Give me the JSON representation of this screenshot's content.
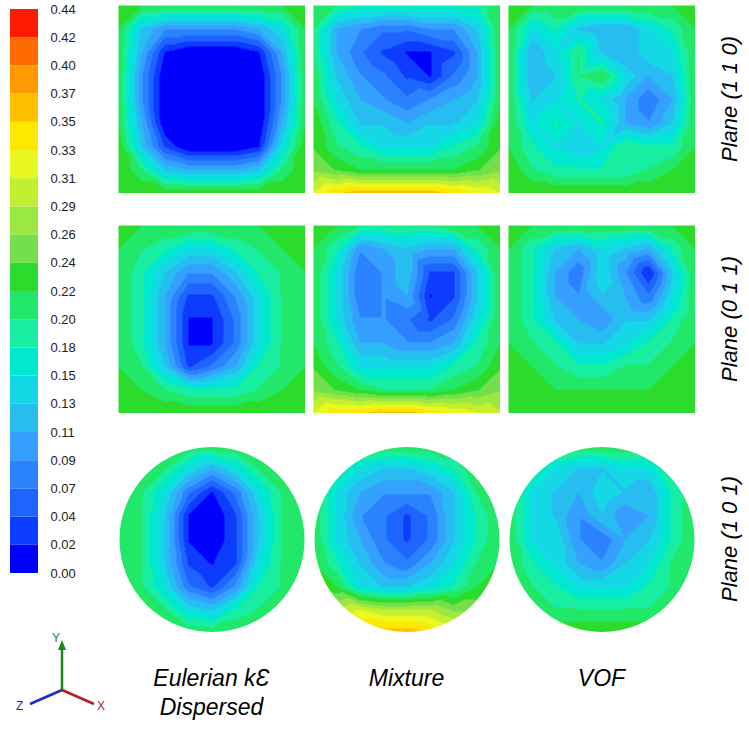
{
  "chart_data": {
    "type": "heatmap",
    "colorbar": {
      "range": [
        0,
        0.44
      ],
      "ticks": [
        {
          "value": 0,
          "label": "0.00"
        },
        {
          "value": 0.022,
          "label": "0.02"
        },
        {
          "value": 0.044,
          "label": "0.04"
        },
        {
          "value": 0.066,
          "label": "0.07"
        },
        {
          "value": 0.088,
          "label": "0.09"
        },
        0.11,
        {
          "value": 0.132,
          "label": "0.13"
        },
        {
          "value": 0.154,
          "label": "0.15"
        },
        {
          "value": 0.176,
          "label": "0.18"
        },
        {
          "value": 0.198,
          "label": "0.20"
        },
        0.22,
        {
          "value": 0.242,
          "label": "0.24"
        },
        {
          "value": 0.264,
          "label": "0.26"
        },
        {
          "value": 0.286,
          "label": "0.29"
        },
        {
          "value": 0.308,
          "label": "0.31"
        },
        0.33,
        {
          "value": 0.352,
          "label": "0.35"
        },
        {
          "value": 0.374,
          "label": "0.37"
        },
        {
          "value": 0.396,
          "label": "0.40"
        },
        {
          "value": 0.418,
          "label": "0.42"
        },
        0.44
      ],
      "colors": [
        "#0000ff",
        "#0d3cff",
        "#1e64ff",
        "#2a82ff",
        "#35a0ff",
        "#28bdf0",
        "#14d8e6",
        "#00e8d0",
        "#17eea2",
        "#22e86a",
        "#2cdc2c",
        "#72e04a",
        "#9ae840",
        "#c2f030",
        "#e8f820",
        "#ffe800",
        "#ffc000",
        "#ff9a00",
        "#ff6a00",
        "#ff1a00"
      ]
    },
    "columns": [
      "Eulerian kƐ Dispersed",
      "Mixture",
      "VOF"
    ],
    "rows": [
      {
        "label": "Plane (1 1 0)",
        "shape": "square",
        "cells": [
          [
            [
              0.22,
              0.22,
              0.22,
              0.22,
              0.22,
              0.22,
              0.22,
              0.22,
              0.22
            ],
            [
              0.22,
              0.13,
              0.09,
              0.09,
              0.09,
              0.09,
              0.11,
              0.15,
              0.22
            ],
            [
              0.22,
              0.11,
              0.02,
              0.0,
              0.0,
              0.0,
              0.02,
              0.11,
              0.22
            ],
            [
              0.22,
              0.09,
              0.0,
              0.0,
              0.0,
              0.0,
              0.0,
              0.09,
              0.22
            ],
            [
              0.22,
              0.09,
              0.0,
              0.0,
              0.0,
              0.0,
              0.0,
              0.09,
              0.22
            ],
            [
              0.22,
              0.11,
              0.0,
              0.0,
              0.0,
              0.0,
              0.0,
              0.11,
              0.22
            ],
            [
              0.24,
              0.13,
              0.04,
              0.0,
              0.0,
              0.0,
              0.02,
              0.15,
              0.24
            ],
            [
              0.24,
              0.2,
              0.13,
              0.11,
              0.11,
              0.11,
              0.13,
              0.2,
              0.24
            ],
            [
              0.24,
              0.24,
              0.24,
              0.24,
              0.24,
              0.24,
              0.24,
              0.24,
              0.24
            ]
          ],
          [
            [
              0.22,
              0.2,
              0.18,
              0.18,
              0.18,
              0.18,
              0.18,
              0.18,
              0.22
            ],
            [
              0.2,
              0.11,
              0.09,
              0.07,
              0.07,
              0.09,
              0.09,
              0.13,
              0.22
            ],
            [
              0.2,
              0.11,
              0.07,
              0.04,
              0.02,
              0.02,
              0.04,
              0.11,
              0.22
            ],
            [
              0.22,
              0.13,
              0.09,
              0.07,
              0.04,
              0.02,
              0.07,
              0.11,
              0.22
            ],
            [
              0.22,
              0.15,
              0.11,
              0.09,
              0.07,
              0.09,
              0.11,
              0.13,
              0.22
            ],
            [
              0.24,
              0.18,
              0.13,
              0.13,
              0.11,
              0.13,
              0.13,
              0.15,
              0.24
            ],
            [
              0.24,
              0.2,
              0.18,
              0.15,
              0.15,
              0.15,
              0.18,
              0.2,
              0.24
            ],
            [
              0.26,
              0.24,
              0.22,
              0.22,
              0.22,
              0.22,
              0.22,
              0.24,
              0.26
            ],
            [
              0.31,
              0.35,
              0.37,
              0.37,
              0.37,
              0.37,
              0.35,
              0.33,
              0.31
            ]
          ],
          [
            [
              0.22,
              0.22,
              0.22,
              0.22,
              0.22,
              0.22,
              0.22,
              0.22,
              0.22
            ],
            [
              0.22,
              0.15,
              0.18,
              0.13,
              0.11,
              0.11,
              0.15,
              0.18,
              0.22
            ],
            [
              0.22,
              0.11,
              0.15,
              0.2,
              0.13,
              0.11,
              0.15,
              0.15,
              0.22
            ],
            [
              0.22,
              0.11,
              0.13,
              0.2,
              0.22,
              0.15,
              0.11,
              0.13,
              0.22
            ],
            [
              0.22,
              0.13,
              0.15,
              0.18,
              0.15,
              0.11,
              0.07,
              0.11,
              0.22
            ],
            [
              0.22,
              0.15,
              0.18,
              0.15,
              0.18,
              0.11,
              0.09,
              0.13,
              0.22
            ],
            [
              0.22,
              0.18,
              0.15,
              0.13,
              0.15,
              0.2,
              0.18,
              0.18,
              0.22
            ],
            [
              0.24,
              0.2,
              0.18,
              0.18,
              0.18,
              0.18,
              0.2,
              0.22,
              0.24
            ],
            [
              0.24,
              0.24,
              0.24,
              0.24,
              0.24,
              0.24,
              0.24,
              0.24,
              0.24
            ]
          ]
        ]
      },
      {
        "label": "Plane (0 1 1)",
        "shape": "square",
        "cells": [
          [
            [
              0.22,
              0.22,
              0.22,
              0.22,
              0.22,
              0.22,
              0.22,
              0.22,
              0.22
            ],
            [
              0.22,
              0.2,
              0.18,
              0.15,
              0.15,
              0.18,
              0.2,
              0.22,
              0.22
            ],
            [
              0.22,
              0.18,
              0.13,
              0.09,
              0.09,
              0.13,
              0.18,
              0.2,
              0.22
            ],
            [
              0.22,
              0.18,
              0.11,
              0.04,
              0.04,
              0.09,
              0.15,
              0.2,
              0.22
            ],
            [
              0.22,
              0.18,
              0.11,
              0.02,
              0.02,
              0.07,
              0.15,
              0.2,
              0.22
            ],
            [
              0.22,
              0.18,
              0.11,
              0.02,
              0.02,
              0.07,
              0.15,
              0.2,
              0.22
            ],
            [
              0.22,
              0.2,
              0.13,
              0.04,
              0.07,
              0.11,
              0.18,
              0.2,
              0.22
            ],
            [
              0.22,
              0.22,
              0.2,
              0.18,
              0.18,
              0.18,
              0.2,
              0.22,
              0.22
            ],
            [
              0.24,
              0.24,
              0.24,
              0.24,
              0.24,
              0.24,
              0.24,
              0.24,
              0.24
            ]
          ],
          [
            [
              0.22,
              0.22,
              0.2,
              0.2,
              0.2,
              0.2,
              0.22,
              0.22,
              0.22
            ],
            [
              0.22,
              0.18,
              0.09,
              0.11,
              0.13,
              0.11,
              0.11,
              0.18,
              0.22
            ],
            [
              0.22,
              0.15,
              0.07,
              0.09,
              0.13,
              0.04,
              0.04,
              0.13,
              0.22
            ],
            [
              0.22,
              0.15,
              0.07,
              0.09,
              0.11,
              0.02,
              0.04,
              0.13,
              0.22
            ],
            [
              0.22,
              0.15,
              0.09,
              0.09,
              0.07,
              0.04,
              0.07,
              0.15,
              0.22
            ],
            [
              0.22,
              0.18,
              0.11,
              0.11,
              0.09,
              0.09,
              0.11,
              0.18,
              0.22
            ],
            [
              0.24,
              0.2,
              0.15,
              0.15,
              0.15,
              0.15,
              0.18,
              0.2,
              0.24
            ],
            [
              0.26,
              0.24,
              0.22,
              0.2,
              0.2,
              0.2,
              0.22,
              0.24,
              0.26
            ],
            [
              0.31,
              0.35,
              0.35,
              0.37,
              0.37,
              0.35,
              0.33,
              0.31,
              0.29
            ]
          ],
          [
            [
              0.22,
              0.22,
              0.22,
              0.22,
              0.22,
              0.22,
              0.22,
              0.22,
              0.22
            ],
            [
              0.22,
              0.18,
              0.13,
              0.11,
              0.15,
              0.13,
              0.11,
              0.18,
              0.22
            ],
            [
              0.22,
              0.18,
              0.11,
              0.07,
              0.15,
              0.09,
              0.02,
              0.13,
              0.22
            ],
            [
              0.22,
              0.18,
              0.11,
              0.09,
              0.13,
              0.11,
              0.07,
              0.15,
              0.22
            ],
            [
              0.22,
              0.18,
              0.13,
              0.11,
              0.09,
              0.13,
              0.13,
              0.18,
              0.22
            ],
            [
              0.22,
              0.2,
              0.18,
              0.13,
              0.13,
              0.15,
              0.18,
              0.2,
              0.22
            ],
            [
              0.22,
              0.22,
              0.2,
              0.18,
              0.18,
              0.2,
              0.2,
              0.22,
              0.22
            ],
            [
              0.22,
              0.22,
              0.22,
              0.22,
              0.22,
              0.22,
              0.22,
              0.22,
              0.22
            ],
            [
              0.24,
              0.24,
              0.24,
              0.24,
              0.24,
              0.24,
              0.24,
              0.24,
              0.24
            ]
          ]
        ]
      },
      {
        "label": "Plane (1 0 1)",
        "shape": "circle",
        "cells": [
          [
            [
              0.22,
              0.22,
              0.22,
              0.22,
              0.22,
              0.22,
              0.22,
              0.22,
              0.22
            ],
            [
              0.22,
              0.22,
              0.2,
              0.15,
              0.11,
              0.15,
              0.2,
              0.22,
              0.22
            ],
            [
              0.22,
              0.2,
              0.15,
              0.07,
              0.02,
              0.07,
              0.15,
              0.2,
              0.22
            ],
            [
              0.22,
              0.2,
              0.13,
              0.02,
              0.0,
              0.04,
              0.13,
              0.2,
              0.22
            ],
            [
              0.22,
              0.2,
              0.13,
              0.02,
              0.0,
              0.04,
              0.13,
              0.2,
              0.22
            ],
            [
              0.22,
              0.2,
              0.13,
              0.04,
              0.02,
              0.04,
              0.15,
              0.2,
              0.22
            ],
            [
              0.22,
              0.2,
              0.15,
              0.07,
              0.04,
              0.09,
              0.18,
              0.2,
              0.22
            ],
            [
              0.22,
              0.22,
              0.2,
              0.15,
              0.13,
              0.18,
              0.2,
              0.22,
              0.22
            ],
            [
              0.22,
              0.22,
              0.22,
              0.22,
              0.22,
              0.22,
              0.22,
              0.22,
              0.22
            ]
          ],
          [
            [
              0.22,
              0.22,
              0.22,
              0.22,
              0.22,
              0.22,
              0.22,
              0.22,
              0.22
            ],
            [
              0.22,
              0.2,
              0.15,
              0.13,
              0.13,
              0.15,
              0.18,
              0.22,
              0.22
            ],
            [
              0.22,
              0.15,
              0.11,
              0.09,
              0.09,
              0.09,
              0.13,
              0.2,
              0.22
            ],
            [
              0.22,
              0.15,
              0.09,
              0.07,
              0.04,
              0.07,
              0.13,
              0.18,
              0.22
            ],
            [
              0.22,
              0.15,
              0.11,
              0.07,
              0.04,
              0.07,
              0.13,
              0.18,
              0.22
            ],
            [
              0.22,
              0.18,
              0.13,
              0.09,
              0.07,
              0.11,
              0.15,
              0.2,
              0.22
            ],
            [
              0.24,
              0.22,
              0.15,
              0.13,
              0.13,
              0.15,
              0.18,
              0.22,
              0.24
            ],
            [
              0.26,
              0.29,
              0.31,
              0.29,
              0.29,
              0.29,
              0.26,
              0.26,
              0.26
            ],
            [
              0.31,
              0.33,
              0.35,
              0.37,
              0.37,
              0.35,
              0.33,
              0.31,
              0.31
            ]
          ],
          [
            [
              0.22,
              0.22,
              0.22,
              0.22,
              0.22,
              0.22,
              0.22,
              0.22,
              0.22
            ],
            [
              0.22,
              0.2,
              0.15,
              0.13,
              0.13,
              0.15,
              0.15,
              0.2,
              0.22
            ],
            [
              0.22,
              0.15,
              0.13,
              0.11,
              0.15,
              0.13,
              0.11,
              0.18,
              0.22
            ],
            [
              0.22,
              0.15,
              0.13,
              0.09,
              0.13,
              0.09,
              0.11,
              0.18,
              0.22
            ],
            [
              0.22,
              0.15,
              0.15,
              0.09,
              0.07,
              0.11,
              0.13,
              0.18,
              0.22
            ],
            [
              0.22,
              0.18,
              0.15,
              0.11,
              0.09,
              0.13,
              0.15,
              0.2,
              0.22
            ],
            [
              0.22,
              0.2,
              0.18,
              0.15,
              0.15,
              0.15,
              0.18,
              0.2,
              0.22
            ],
            [
              0.22,
              0.22,
              0.2,
              0.2,
              0.2,
              0.2,
              0.2,
              0.22,
              0.22
            ],
            [
              0.24,
              0.24,
              0.24,
              0.24,
              0.24,
              0.24,
              0.24,
              0.24,
              0.24
            ]
          ]
        ]
      }
    ],
    "triad_labels": [
      "Y",
      "Z",
      "X"
    ]
  }
}
